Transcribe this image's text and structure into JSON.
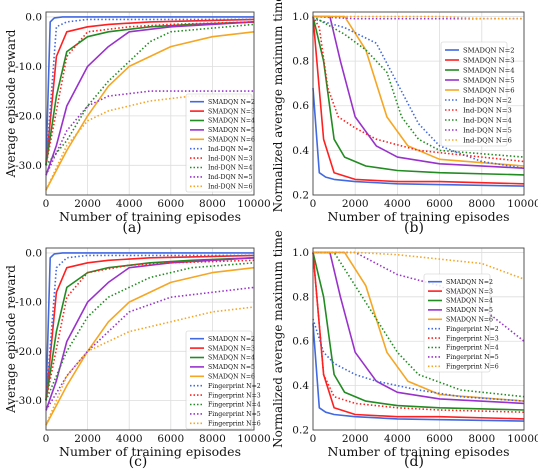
{
  "colors": {
    "N=2": "#4169e1",
    "N=3": "#ff2020",
    "N=4": "#228b22",
    "N=5": "#9932cc",
    "N=6": "#f5a623"
  },
  "chart_data": [
    {
      "panel_label": "(a)",
      "type": "line",
      "xlabel": "Number of training episodes",
      "ylabel": "Average episode reward",
      "xlim": [
        0,
        10000
      ],
      "ylim": [
        -36,
        1
      ],
      "xticks": [
        0,
        2000,
        4000,
        6000,
        8000,
        10000
      ],
      "yticks": [
        0,
        -10,
        -20,
        -30
      ],
      "grid": true,
      "legend_position": "center-right",
      "series": [
        {
          "name": "SMADQN N=2",
          "key": "N=2",
          "style": "solid",
          "x": [
            0,
            200,
            400,
            800,
            1500,
            3000,
            5000,
            10000
          ],
          "y": [
            -30,
            -1,
            -0.2,
            0,
            0,
            0,
            0,
            0
          ]
        },
        {
          "name": "SMADQN N=3",
          "key": "N=3",
          "style": "solid",
          "x": [
            0,
            500,
            1000,
            2000,
            3000,
            5000,
            7000,
            10000
          ],
          "y": [
            -30,
            -8,
            -3,
            -2,
            -1.5,
            -1,
            -0.8,
            -0.5
          ]
        },
        {
          "name": "SMADQN N=4",
          "key": "N=4",
          "style": "solid",
          "x": [
            0,
            500,
            1000,
            2000,
            3000,
            5000,
            7000,
            10000
          ],
          "y": [
            -30,
            -16,
            -7,
            -4,
            -3,
            -2,
            -1.5,
            -1
          ]
        },
        {
          "name": "SMADQN N=5",
          "key": "N=5",
          "style": "solid",
          "x": [
            0,
            500,
            1000,
            2000,
            3000,
            4000,
            6000,
            10000
          ],
          "y": [
            -32,
            -26,
            -18,
            -10,
            -6,
            -3,
            -2,
            -1
          ]
        },
        {
          "name": "SMADQN N=6",
          "key": "N=6",
          "style": "solid",
          "x": [
            0,
            1000,
            2000,
            3000,
            4000,
            6000,
            8000,
            10000
          ],
          "y": [
            -35,
            -27,
            -20,
            -14,
            -10,
            -6,
            -4,
            -3
          ]
        },
        {
          "name": "Ind-DQN N=2",
          "key": "N=2",
          "style": "dotted",
          "x": [
            0,
            500,
            1000,
            2000,
            4000,
            10000
          ],
          "y": [
            -30,
            -2,
            -1,
            -0.5,
            -0.5,
            -0.5
          ]
        },
        {
          "name": "Ind-DQN N=3",
          "key": "N=3",
          "style": "dotted",
          "x": [
            0,
            1000,
            2000,
            4000,
            6000,
            10000
          ],
          "y": [
            -30,
            -8,
            -3,
            -2,
            -1.5,
            -1
          ]
        },
        {
          "name": "Ind-DQN N=4",
          "key": "N=4",
          "style": "dotted",
          "x": [
            0,
            1000,
            2000,
            3000,
            4000,
            5000,
            6000,
            10000
          ],
          "y": [
            -30,
            -25,
            -18,
            -13,
            -9,
            -5,
            -3,
            -1.5
          ]
        },
        {
          "name": "Ind-DQN N=5",
          "key": "N=5",
          "style": "dotted",
          "x": [
            0,
            1000,
            2000,
            3000,
            5000,
            7000,
            10000
          ],
          "y": [
            -32,
            -23,
            -18,
            -16,
            -15,
            -15,
            -15
          ]
        },
        {
          "name": "Ind-DQN N=6",
          "key": "N=6",
          "style": "dotted",
          "x": [
            0,
            1000,
            2000,
            3000,
            5000,
            7000,
            10000
          ],
          "y": [
            -35,
            -26,
            -21,
            -19,
            -17,
            -16,
            -16
          ]
        }
      ]
    },
    {
      "panel_label": "(b)",
      "type": "line",
      "xlabel": "Number of training episodes",
      "ylabel": "Normalized average maximum time",
      "xlim": [
        0,
        10000
      ],
      "ylim": [
        0.2,
        1.02
      ],
      "xticks": [
        0,
        2000,
        4000,
        6000,
        8000,
        10000
      ],
      "yticks": [
        0.2,
        0.4,
        0.6,
        0.8,
        1.0
      ],
      "grid": true,
      "legend_position": "right",
      "series": [
        {
          "name": "SMADQN N=2",
          "key": "N=2",
          "style": "solid",
          "x": [
            0,
            300,
            600,
            1000,
            2000,
            4000,
            10000
          ],
          "y": [
            0.68,
            0.3,
            0.28,
            0.27,
            0.26,
            0.25,
            0.24
          ]
        },
        {
          "name": "SMADQN N=3",
          "key": "N=3",
          "style": "solid",
          "x": [
            0,
            500,
            1000,
            2000,
            4000,
            6000,
            10000
          ],
          "y": [
            1,
            0.45,
            0.3,
            0.27,
            0.26,
            0.26,
            0.25
          ]
        },
        {
          "name": "SMADQN N=4",
          "key": "N=4",
          "style": "solid",
          "x": [
            0,
            500,
            1000,
            1500,
            2500,
            4000,
            6000,
            10000
          ],
          "y": [
            1,
            0.8,
            0.45,
            0.37,
            0.33,
            0.31,
            0.3,
            0.29
          ]
        },
        {
          "name": "SMADQN N=5",
          "key": "N=5",
          "style": "solid",
          "x": [
            0,
            800,
            1300,
            2000,
            3000,
            4000,
            6000,
            10000
          ],
          "y": [
            1,
            1,
            0.8,
            0.55,
            0.42,
            0.37,
            0.34,
            0.32
          ]
        },
        {
          "name": "SMADQN N=6",
          "key": "N=6",
          "style": "solid",
          "x": [
            0,
            1500,
            2500,
            3000,
            3500,
            4500,
            6000,
            10000
          ],
          "y": [
            1,
            1,
            0.85,
            0.7,
            0.55,
            0.42,
            0.36,
            0.33
          ]
        },
        {
          "name": "Ind-DQN N=2",
          "key": "N=2",
          "style": "dotted",
          "x": [
            0,
            1500,
            3000,
            4000,
            5000,
            6000,
            8000,
            10000
          ],
          "y": [
            0.99,
            0.95,
            0.88,
            0.7,
            0.52,
            0.42,
            0.35,
            0.32
          ]
        },
        {
          "name": "Ind-DQN N=3",
          "key": "N=3",
          "style": "dotted",
          "x": [
            0,
            300,
            700,
            1200,
            2000,
            3000,
            5000,
            10000
          ],
          "y": [
            1,
            0.95,
            0.68,
            0.55,
            0.5,
            0.45,
            0.4,
            0.35
          ]
        },
        {
          "name": "Ind-DQN N=4",
          "key": "N=4",
          "style": "dotted",
          "x": [
            0,
            1500,
            2500,
            3500,
            4200,
            5000,
            6000,
            10000
          ],
          "y": [
            1,
            0.92,
            0.85,
            0.75,
            0.55,
            0.45,
            0.4,
            0.37
          ]
        },
        {
          "name": "Ind-DQN N=5",
          "key": "N=5",
          "style": "dotted",
          "x": [
            0,
            2000,
            4000,
            6000,
            8000,
            10000
          ],
          "y": [
            1,
            0.99,
            0.99,
            0.99,
            0.99,
            0.99
          ]
        },
        {
          "name": "Ind-DQN N=6",
          "key": "N=6",
          "style": "dotted",
          "x": [
            0,
            2000,
            4000,
            6000,
            8000,
            10000
          ],
          "y": [
            1,
            1,
            1,
            1,
            0.99,
            0.99
          ]
        }
      ]
    },
    {
      "panel_label": "(c)",
      "type": "line",
      "xlabel": "Number of training episodes",
      "ylabel": "Average episode reward",
      "xlim": [
        0,
        10000
      ],
      "ylim": [
        -36,
        1
      ],
      "xticks": [
        0,
        2000,
        4000,
        6000,
        8000,
        10000
      ],
      "yticks": [
        0,
        -10,
        -20,
        -30
      ],
      "grid": true,
      "legend_position": "lower-right",
      "series": [
        {
          "name": "SMADQN N=2",
          "key": "N=2",
          "style": "solid",
          "x": [
            0,
            200,
            400,
            800,
            1500,
            3000,
            5000,
            10000
          ],
          "y": [
            -30,
            -1,
            -0.2,
            0,
            0,
            0,
            0,
            0
          ]
        },
        {
          "name": "SMADQN N=3",
          "key": "N=3",
          "style": "solid",
          "x": [
            0,
            500,
            1000,
            2000,
            3000,
            5000,
            7000,
            10000
          ],
          "y": [
            -30,
            -8,
            -3,
            -2,
            -1.5,
            -1,
            -0.8,
            -0.5
          ]
        },
        {
          "name": "SMADQN N=4",
          "key": "N=4",
          "style": "solid",
          "x": [
            0,
            500,
            1000,
            2000,
            3000,
            5000,
            7000,
            10000
          ],
          "y": [
            -30,
            -16,
            -7,
            -4,
            -3,
            -2,
            -1.5,
            -1
          ]
        },
        {
          "name": "SMADQN N=5",
          "key": "N=5",
          "style": "solid",
          "x": [
            0,
            500,
            1000,
            2000,
            3000,
            4000,
            6000,
            10000
          ],
          "y": [
            -32,
            -26,
            -18,
            -10,
            -6,
            -3,
            -2,
            -1
          ]
        },
        {
          "name": "SMADQN N=6",
          "key": "N=6",
          "style": "solid",
          "x": [
            0,
            1000,
            2000,
            3000,
            4000,
            6000,
            8000,
            10000
          ],
          "y": [
            -35,
            -27,
            -20,
            -14,
            -10,
            -6,
            -4,
            -3
          ]
        },
        {
          "name": "Fingerprint N=2",
          "key": "N=2",
          "style": "dotted",
          "x": [
            0,
            500,
            1000,
            2000,
            4000,
            10000
          ],
          "y": [
            -30,
            -3,
            -1,
            -0.5,
            -0.5,
            -0.5
          ]
        },
        {
          "name": "Fingerprint N=3",
          "key": "N=3",
          "style": "dotted",
          "x": [
            0,
            1000,
            2000,
            4000,
            6000,
            10000
          ],
          "y": [
            -30,
            -9,
            -4,
            -2.5,
            -2,
            -1.5
          ]
        },
        {
          "name": "Fingerprint N=4",
          "key": "N=4",
          "style": "dotted",
          "x": [
            0,
            1000,
            2000,
            3000,
            5000,
            7000,
            10000
          ],
          "y": [
            -30,
            -20,
            -13,
            -9,
            -5,
            -3,
            -2
          ]
        },
        {
          "name": "Fingerprint N=5",
          "key": "N=5",
          "style": "dotted",
          "x": [
            0,
            1000,
            2000,
            3000,
            4000,
            6000,
            8000,
            10000
          ],
          "y": [
            -32,
            -25,
            -20,
            -16,
            -12,
            -9,
            -8,
            -7
          ]
        },
        {
          "name": "Fingerprint N=6",
          "key": "N=6",
          "style": "dotted",
          "x": [
            0,
            1000,
            2000,
            4000,
            6000,
            8000,
            10000
          ],
          "y": [
            -35,
            -25,
            -20,
            -16,
            -14,
            -12,
            -11
          ]
        }
      ]
    },
    {
      "panel_label": "(d)",
      "type": "line",
      "xlabel": "Number of training episodes",
      "ylabel": "Normalized average maximum time",
      "xlim": [
        0,
        10000
      ],
      "ylim": [
        0.2,
        1.02
      ],
      "xticks": [
        0,
        2000,
        4000,
        6000,
        8000,
        10000
      ],
      "yticks": [
        0.2,
        0.4,
        0.6,
        0.8,
        1.0
      ],
      "grid": true,
      "legend_position": "right",
      "series": [
        {
          "name": "SMADQN N=2",
          "key": "N=2",
          "style": "solid",
          "x": [
            0,
            300,
            600,
            1000,
            2000,
            4000,
            10000
          ],
          "y": [
            0.68,
            0.3,
            0.28,
            0.27,
            0.26,
            0.25,
            0.24
          ]
        },
        {
          "name": "SMADQN N=3",
          "key": "N=3",
          "style": "solid",
          "x": [
            0,
            500,
            1000,
            2000,
            4000,
            6000,
            10000
          ],
          "y": [
            1,
            0.45,
            0.3,
            0.27,
            0.26,
            0.26,
            0.25
          ]
        },
        {
          "name": "SMADQN N=4",
          "key": "N=4",
          "style": "solid",
          "x": [
            0,
            500,
            1000,
            1500,
            2500,
            4000,
            6000,
            10000
          ],
          "y": [
            1,
            0.8,
            0.45,
            0.37,
            0.33,
            0.31,
            0.3,
            0.29
          ]
        },
        {
          "name": "SMADQN N=5",
          "key": "N=5",
          "style": "solid",
          "x": [
            0,
            800,
            1300,
            2000,
            3000,
            4000,
            6000,
            10000
          ],
          "y": [
            1,
            1,
            0.8,
            0.55,
            0.42,
            0.37,
            0.34,
            0.32
          ]
        },
        {
          "name": "SMADQN N=6",
          "key": "N=6",
          "style": "solid",
          "x": [
            0,
            1500,
            2500,
            3000,
            3500,
            4500,
            6000,
            10000
          ],
          "y": [
            1,
            1,
            0.85,
            0.7,
            0.55,
            0.42,
            0.36,
            0.33
          ]
        },
        {
          "name": "Fingerprint N=2",
          "key": "N=2",
          "style": "dotted",
          "x": [
            0,
            500,
            1000,
            2000,
            3000,
            5000,
            7000,
            10000
          ],
          "y": [
            0.7,
            0.55,
            0.5,
            0.45,
            0.42,
            0.38,
            0.35,
            0.33
          ]
        },
        {
          "name": "Fingerprint N=3",
          "key": "N=3",
          "style": "dotted",
          "x": [
            0,
            500,
            1000,
            2000,
            4000,
            6000,
            10000
          ],
          "y": [
            1,
            0.45,
            0.35,
            0.32,
            0.3,
            0.29,
            0.28
          ]
        },
        {
          "name": "Fingerprint N=4",
          "key": "N=4",
          "style": "dotted",
          "x": [
            0,
            1000,
            2000,
            3000,
            4000,
            5000,
            7000,
            10000
          ],
          "y": [
            1,
            1,
            0.85,
            0.7,
            0.55,
            0.45,
            0.38,
            0.35
          ]
        },
        {
          "name": "Fingerprint N=5",
          "key": "N=5",
          "style": "dotted",
          "x": [
            0,
            2000,
            3000,
            4000,
            6000,
            8000,
            10000
          ],
          "y": [
            1,
            1,
            0.95,
            0.9,
            0.85,
            0.75,
            0.6
          ]
        },
        {
          "name": "Fingerprint N=6",
          "key": "N=6",
          "style": "dotted",
          "x": [
            0,
            2000,
            4000,
            6000,
            8000,
            10000
          ],
          "y": [
            1,
            1,
            0.99,
            0.97,
            0.95,
            0.88
          ]
        }
      ]
    }
  ]
}
